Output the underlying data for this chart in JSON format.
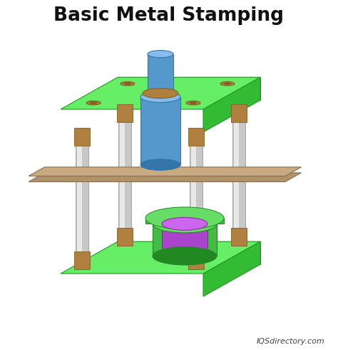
{
  "title": "Basic Metal Stamping",
  "watermark": "IQSdirectory.com",
  "bg_color": "#ffffff",
  "border_color": "#cccccc",
  "green_face": "#55dd55",
  "green_top": "#66ee66",
  "green_right": "#33bb33",
  "green_dark": "#229922",
  "blue_punch": "#5599cc",
  "blue_punch_light": "#88bbee",
  "blue_punch_dark": "#3377aa",
  "silver_post": "#c8c8c8",
  "silver_post_light": "#e8e8e8",
  "silver_post_dark": "#999999",
  "bronze_bushing": "#b08040",
  "bronze_dark": "#806020",
  "purple_die": "#aa44cc",
  "purple_die_light": "#cc66ee",
  "purple_die_dark": "#882299",
  "green_die": "#44bb44",
  "green_die_light": "#66dd66",
  "green_die_dark": "#228822",
  "metal_strip": "#b0926a",
  "metal_strip_dark": "#8a7050",
  "white": "#ffffff"
}
